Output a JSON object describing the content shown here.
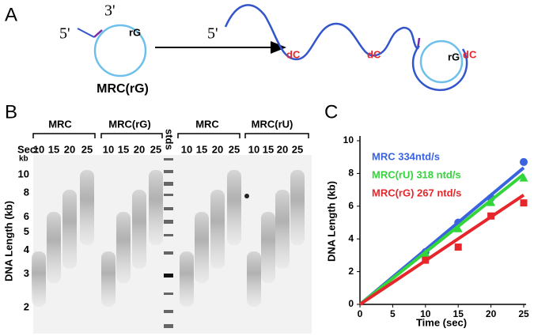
{
  "panel_a": {
    "label": "A",
    "left_five": "5'",
    "left_three": "3'",
    "left_rg": "rG",
    "left_name": "MRC(rG)",
    "right_five": "5'",
    "right_dc": [
      "dC",
      "dC",
      "dC"
    ],
    "right_rg": "rG"
  },
  "panel_b": {
    "label": "B",
    "groups": [
      "MRC",
      "MRC(rG)",
      "MRC",
      "MRC(rU)"
    ],
    "stds": "stds",
    "sec_label": "Sec:",
    "lanes": [
      [
        10,
        15,
        20,
        25
      ],
      [
        10,
        15,
        20,
        25
      ],
      [
        10,
        15,
        20,
        25
      ],
      [
        10,
        15,
        20,
        25
      ]
    ],
    "kb": "kb",
    "ylabel": "DNA Length (kb)",
    "yticks": [
      10,
      8,
      6,
      5,
      4,
      3,
      2
    ],
    "ylim": [
      2,
      10
    ],
    "log": true
  },
  "chart_data": {
    "type": "scatter",
    "panel_label": "C",
    "x_label": "Time (sec)",
    "y_label": "DNA Length (kb)",
    "xlim": [
      0,
      25
    ],
    "ylim": [
      0,
      10
    ],
    "xticks": [
      0,
      5,
      10,
      15,
      20,
      25
    ],
    "yticks": [
      0,
      2,
      4,
      6,
      8,
      10
    ],
    "series": [
      {
        "name": "MRC 334ntd/s",
        "color": "#3a63e0",
        "marker": "circle",
        "x": [
          10,
          15,
          20,
          25
        ],
        "values": [
          3.2,
          5.0,
          6.5,
          8.7
        ],
        "fit_x": [
          0,
          25
        ],
        "fit_values": [
          0,
          8.35
        ]
      },
      {
        "name": "MRC(rU) 318 ntd/s",
        "color": "#33d63a",
        "marker": "triangle",
        "x": [
          10,
          15,
          20,
          25
        ],
        "values": [
          3.1,
          4.6,
          6.2,
          7.7
        ],
        "fit_x": [
          0,
          25
        ],
        "fit_values": [
          0,
          7.95
        ]
      },
      {
        "name": "MRC(rG) 267 ntd/s",
        "color": "#e6262b",
        "marker": "square",
        "x": [
          10,
          15,
          20,
          25
        ],
        "values": [
          2.7,
          3.5,
          5.4,
          6.2
        ],
        "fit_x": [
          0,
          25
        ],
        "fit_values": [
          0,
          6.68
        ]
      }
    ]
  }
}
